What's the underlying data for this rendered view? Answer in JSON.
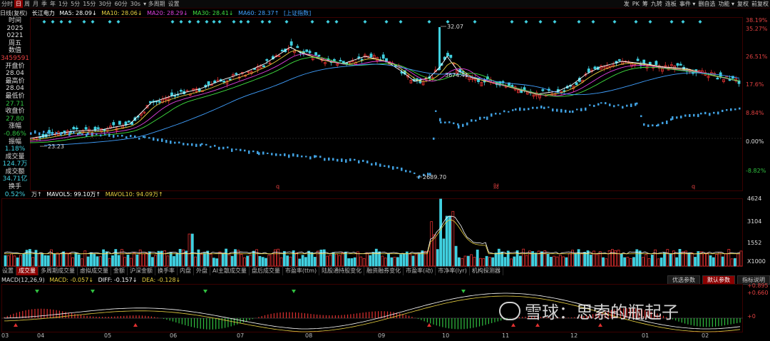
{
  "period_tabs": [
    {
      "label": "分时",
      "active": false
    },
    {
      "label": "日",
      "active": true
    },
    {
      "label": "周",
      "active": false
    },
    {
      "label": "月",
      "active": false
    },
    {
      "label": "季",
      "active": false
    },
    {
      "label": "年",
      "active": false
    },
    {
      "label": "1分",
      "active": false
    },
    {
      "label": "5分",
      "active": false
    },
    {
      "label": "15分",
      "active": false
    },
    {
      "label": "30分",
      "active": false
    },
    {
      "label": "60分",
      "active": false
    },
    {
      "label": "30s",
      "active": false
    },
    {
      "label": "▾ 多周期",
      "active": false
    },
    {
      "label": "设置",
      "active": false
    }
  ],
  "tool_buttons": [
    "发",
    "PK",
    "筹",
    "九转",
    "连板",
    "事件 ▾",
    "删自选",
    "功能 ▾",
    "复权",
    "前复权"
  ],
  "info": {
    "chart_type": "日线(复权)",
    "stock": "长江电力",
    "ma5": "MA5: 28.09↓",
    "ma10": "MA10: 28.06↓",
    "ma20": "MA20: 28.29↓",
    "ma30": "MA30: 28.41↓",
    "ma60": "MA60: 28.37↑",
    "index": "[上证指数]"
  },
  "side": [
    {
      "t": "时间",
      "c": "#ddd"
    },
    {
      "t": "2025",
      "c": "#ddd"
    },
    {
      "t": "0221",
      "c": "#ddd"
    },
    {
      "t": "周五",
      "c": "#ddd"
    },
    {
      "t": "数值",
      "c": "#ddd"
    },
    {
      "t": "3459591",
      "c": "#e04040"
    },
    {
      "t": "开盘价",
      "c": "#ddd"
    },
    {
      "t": "28.04",
      "c": "#ddd"
    },
    {
      "t": "最高价",
      "c": "#ddd"
    },
    {
      "t": "28.04",
      "c": "#ddd"
    },
    {
      "t": "最低价",
      "c": "#ddd"
    },
    {
      "t": "27.71",
      "c": "#30c040"
    },
    {
      "t": "收盘价",
      "c": "#ddd"
    },
    {
      "t": "27.80",
      "c": "#30c040"
    },
    {
      "t": "涨幅",
      "c": "#ddd"
    },
    {
      "t": "-0.86%",
      "c": "#30c040"
    },
    {
      "t": "振幅",
      "c": "#ddd"
    },
    {
      "t": "1.18%",
      "c": "#40d0e0"
    },
    {
      "t": "成交量",
      "c": "#ddd"
    },
    {
      "t": "124.7万",
      "c": "#40d0e0"
    },
    {
      "t": "成交额",
      "c": "#ddd"
    },
    {
      "t": "34.71亿",
      "c": "#40d0e0"
    },
    {
      "t": "换手",
      "c": "#ddd"
    },
    {
      "t": "0.52%",
      "c": "#40d0e0"
    }
  ],
  "price_axis": [
    {
      "t": "38.19%",
      "c": "#e04040"
    },
    {
      "t": "35.27%",
      "c": "#e04040"
    },
    {
      "t": "26.51%",
      "c": "#e04040"
    },
    {
      "t": "17.6%",
      "c": "#e04040"
    },
    {
      "t": "8.84%",
      "c": "#e04040"
    },
    {
      "t": "0.00%",
      "c": "#ddd"
    },
    {
      "t": "-8.82%",
      "c": "#30c040"
    }
  ],
  "price_labels": {
    "high": "32.07",
    "low": "23.23",
    "index_low": "2689.70",
    "index_mark": "3674.41"
  },
  "markers": {
    "q1": "q",
    "cai": "财",
    "q2": "q"
  },
  "volume": {
    "unit": "万↑",
    "mavol5": "MAVOL5: 99.10万↑",
    "mavol10": "MAVOL10: 94.09万↑"
  },
  "volume_axis": [
    "4624",
    "3104",
    "1552",
    "X1000"
  ],
  "bottom_tabs": [
    {
      "label": "设置",
      "active": false
    },
    {
      "label": "成交量",
      "active": true
    },
    {
      "label": "多周期成交量",
      "active": false
    },
    {
      "label": "虚拟成交量",
      "active": false
    },
    {
      "label": "金额",
      "active": false
    },
    {
      "label": "沪深金额",
      "active": false
    },
    {
      "label": "换手率",
      "active": false
    },
    {
      "label": "内盘",
      "active": false
    },
    {
      "label": "外盘",
      "active": false
    },
    {
      "label": "AI主散成交量",
      "active": false
    },
    {
      "label": "盘后成交量",
      "active": false
    },
    {
      "label": "市盈率(ttm)",
      "active": false
    },
    {
      "label": "陆股通持股变化",
      "active": false
    },
    {
      "label": "融资融券变化",
      "active": false
    },
    {
      "label": "市盈率(动)",
      "active": false
    },
    {
      "label": "市净率(lyr)",
      "active": false
    },
    {
      "label": "机构探测器",
      "active": false
    }
  ],
  "right_buttons": [
    {
      "label": "优选参数",
      "active": false
    },
    {
      "label": "默认参数",
      "active": true
    },
    {
      "label": "指标说明",
      "active": false
    }
  ],
  "macd": {
    "name": "MACD(12,26,9)",
    "macd": "MACD: -0.057↓",
    "diff": "DIFF: -0.157↓",
    "dea": "DEA: -0.128↓"
  },
  "macd_axis": [
    "+0.895",
    "+0.660",
    "+0"
  ],
  "months": [
    "03",
    "04",
    "05",
    "06",
    "07",
    "08",
    "09",
    "10",
    "11",
    "12",
    "01",
    "02"
  ],
  "watermark": "雪球：思索的瓶起子",
  "colors": {
    "up": "#e03030",
    "down": "#40d0e0",
    "ma5": "#ffffff",
    "ma10": "#e8d040",
    "ma20": "#e040e0",
    "ma30": "#40e040",
    "ma60": "#40a0ff",
    "index": "#40a0e0",
    "border": "#3a0000"
  }
}
